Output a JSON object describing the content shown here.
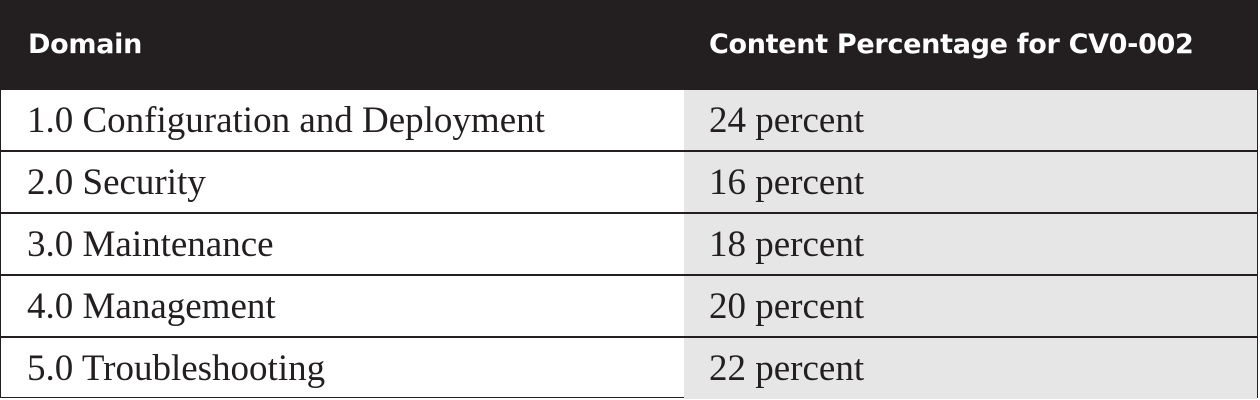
{
  "table": {
    "headers": [
      "Domain",
      "Content Percentage for CV0-002"
    ],
    "rows": [
      {
        "domain": "1.0 Configuration and Deployment",
        "percentage": "24 percent"
      },
      {
        "domain": "2.0 Security",
        "percentage": "16 percent"
      },
      {
        "domain": "3.0 Maintenance",
        "percentage": "18 percent"
      },
      {
        "domain": "4.0 Management",
        "percentage": "20 percent"
      },
      {
        "domain": "5.0 Troubleshooting",
        "percentage": "22 percent"
      }
    ]
  },
  "colors": {
    "header_bg": "#231f20",
    "header_text": "#ffffff",
    "shaded_column": "#e6e6e7",
    "rule": "#231f20"
  }
}
